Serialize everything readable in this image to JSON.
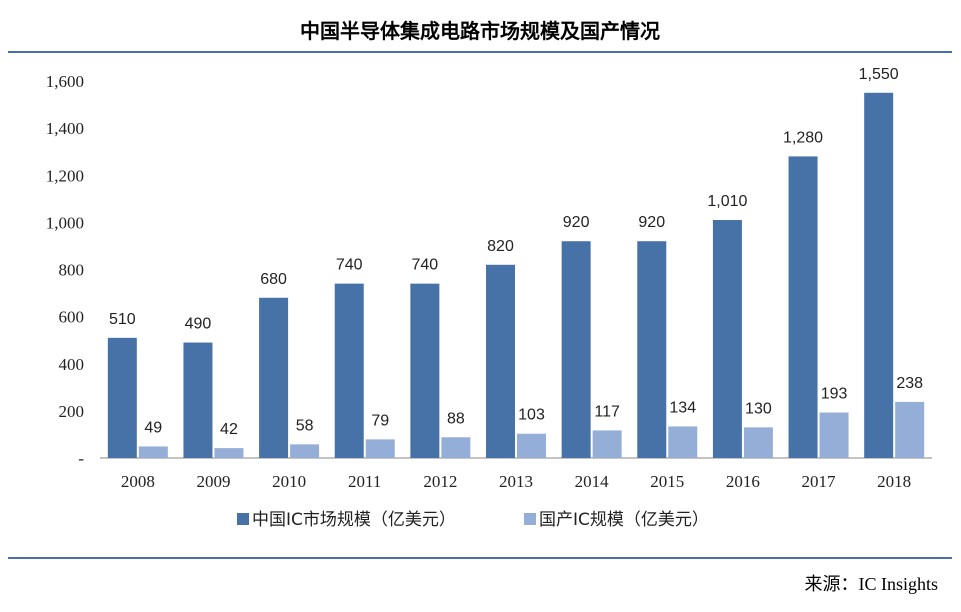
{
  "chart_data": {
    "type": "bar",
    "title": "中国半导体集成电路市场规模及国产情况",
    "categories": [
      "2008",
      "2009",
      "2010",
      "2011",
      "2012",
      "2013",
      "2014",
      "2015",
      "2016",
      "2017",
      "2018"
    ],
    "series": [
      {
        "name": "中国IC市场规模（亿美元）",
        "values": [
          510,
          490,
          680,
          740,
          740,
          820,
          920,
          920,
          1010,
          1280,
          1550
        ],
        "labels": [
          "510",
          "490",
          "680",
          "740",
          "740",
          "820",
          "920",
          "920",
          "1,010",
          "1,280",
          "1,550"
        ],
        "color": "#4672a8"
      },
      {
        "name": "国产IC规模（亿美元）",
        "values": [
          49,
          42,
          58,
          79,
          88,
          103,
          117,
          134,
          130,
          193,
          238
        ],
        "labels": [
          "49",
          "42",
          "58",
          "79",
          "88",
          "103",
          "117",
          "134",
          "130",
          "193",
          "238"
        ],
        "color": "#95aed8"
      }
    ],
    "ylim": [
      0,
      1600
    ],
    "yticks": [
      0,
      200,
      400,
      600,
      800,
      1000,
      1200,
      1400,
      1600
    ],
    "ytick_labels": [
      "-",
      "200",
      "400",
      "600",
      "800",
      "1,000",
      "1,200",
      "1,400",
      "1,600"
    ],
    "grid": false,
    "legend_position": "bottom",
    "xlabel": "",
    "ylabel": ""
  },
  "source_text": "来源：IC Insights",
  "colors": {
    "rule": "#4a6fa5",
    "axis": "#888888"
  }
}
